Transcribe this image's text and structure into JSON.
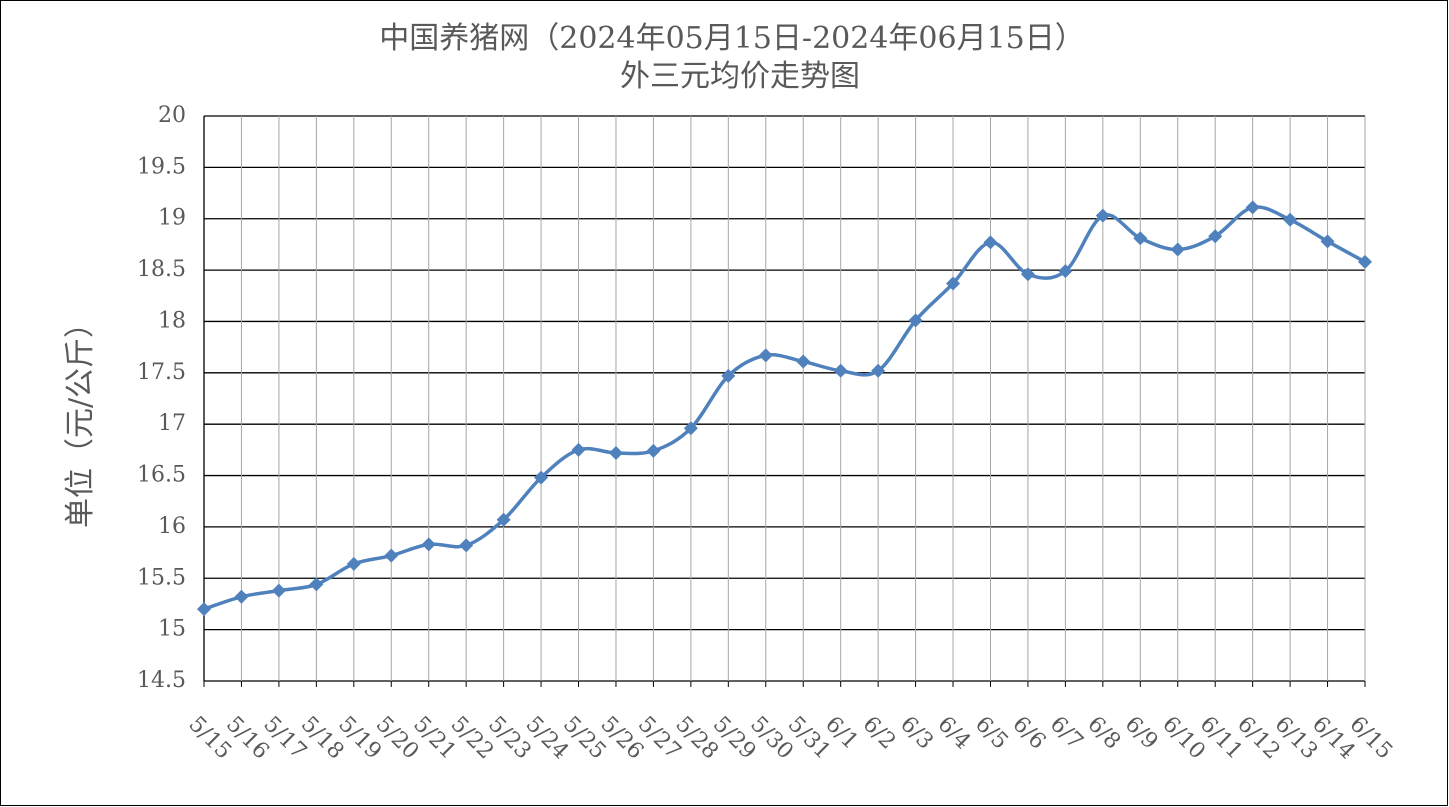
{
  "chart_data": {
    "type": "line",
    "title": "中国养猪网（2024年05月15日-2024年06月15日）",
    "subtitle": "外三元均价走势图",
    "y_label": "单位（元/公斤）",
    "categories": [
      "5/15",
      "5/16",
      "5/17",
      "5/18",
      "5/19",
      "5/20",
      "5/21",
      "5/22",
      "5/23",
      "5/24",
      "5/25",
      "5/26",
      "5/27",
      "5/28",
      "5/29",
      "5/30",
      "5/31",
      "6/1",
      "6/2",
      "6/3",
      "6/4",
      "6/5",
      "6/6",
      "6/7",
      "6/8",
      "6/9",
      "6/10",
      "6/11",
      "6/12",
      "6/13",
      "6/14",
      "6/15"
    ],
    "values": [
      15.2,
      15.32,
      15.38,
      15.44,
      15.64,
      15.72,
      15.83,
      15.82,
      16.07,
      16.48,
      16.75,
      16.72,
      16.74,
      16.96,
      17.47,
      17.67,
      17.61,
      17.52,
      17.52,
      18.01,
      18.37,
      18.77,
      18.46,
      18.49,
      19.03,
      18.81,
      18.7,
      18.83,
      19.11,
      18.99,
      18.78,
      18.58
    ],
    "color": "#4f81bd",
    "ylim": [
      14.5,
      20
    ],
    "yticks": [
      14.5,
      15,
      15.5,
      16,
      16.5,
      17,
      17.5,
      18,
      18.5,
      19,
      19.5,
      20
    ],
    "grid": true
  }
}
